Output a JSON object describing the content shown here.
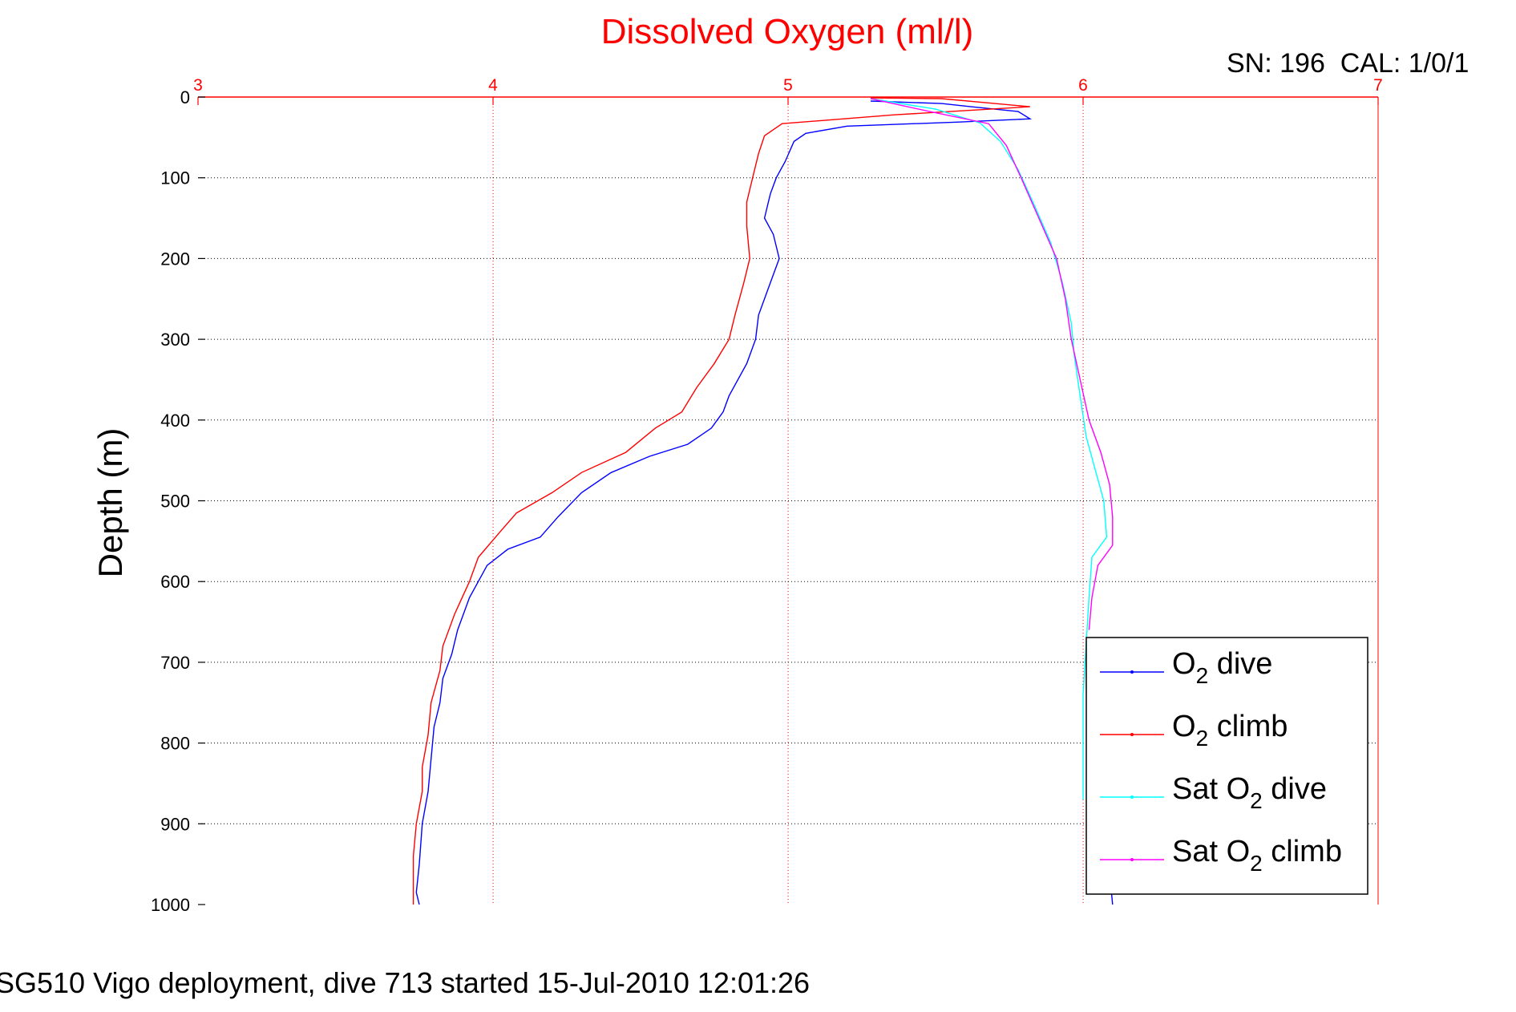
{
  "chart_data": {
    "type": "line",
    "title": "Dissolved Oxygen (ml/l)",
    "corner_label": "SN: 196  CAL: 1/0/1",
    "footer": "SG510 Vigo deployment, dive 713 started 15-Jul-2010 12:01:26",
    "ylabel": "Depth (m)",
    "xlim": [
      3,
      7
    ],
    "ylim": [
      0,
      1000
    ],
    "y_reversed": true,
    "x_axis_position": "top",
    "grid": true,
    "legend_position": "bottom-right",
    "x_ticks": [
      "3",
      "4",
      "5",
      "6",
      "7"
    ],
    "y_ticks": [
      "0",
      "100",
      "200",
      "300",
      "400",
      "500",
      "600",
      "700",
      "800",
      "900",
      "1000"
    ],
    "colors": {
      "title": "#ff0000",
      "x_axis": "#ff0000",
      "grid_x": "#ff0000",
      "grid_y": "#000000"
    },
    "series": [
      {
        "name_prefix": "O",
        "name_sub": "2",
        "name_suffix": " dive",
        "color": "#0000ff",
        "points": [
          [
            5.28,
            5
          ],
          [
            5.52,
            8
          ],
          [
            5.62,
            12
          ],
          [
            5.78,
            18
          ],
          [
            5.82,
            27
          ],
          [
            5.58,
            31
          ],
          [
            5.2,
            36
          ],
          [
            5.06,
            45
          ],
          [
            5.02,
            55
          ],
          [
            4.99,
            80
          ],
          [
            4.96,
            100
          ],
          [
            4.94,
            120
          ],
          [
            4.92,
            150
          ],
          [
            4.95,
            170
          ],
          [
            4.97,
            200
          ],
          [
            4.94,
            230
          ],
          [
            4.9,
            270
          ],
          [
            4.89,
            300
          ],
          [
            4.86,
            330
          ],
          [
            4.8,
            370
          ],
          [
            4.78,
            390
          ],
          [
            4.74,
            410
          ],
          [
            4.66,
            430
          ],
          [
            4.53,
            445
          ],
          [
            4.4,
            465
          ],
          [
            4.3,
            490
          ],
          [
            4.22,
            520
          ],
          [
            4.16,
            545
          ],
          [
            4.05,
            560
          ],
          [
            3.98,
            580
          ],
          [
            3.95,
            600
          ],
          [
            3.92,
            620
          ],
          [
            3.88,
            660
          ],
          [
            3.86,
            690
          ],
          [
            3.83,
            720
          ],
          [
            3.82,
            750
          ],
          [
            3.8,
            780
          ],
          [
            3.79,
            820
          ],
          [
            3.78,
            860
          ],
          [
            3.76,
            900
          ],
          [
            3.75,
            950
          ],
          [
            3.74,
            985
          ],
          [
            3.75,
            1000
          ]
        ]
      },
      {
        "name_prefix": "O",
        "name_sub": "2",
        "name_suffix": " climb",
        "color": "#ff0000",
        "points": [
          [
            5.28,
            1
          ],
          [
            5.52,
            2
          ],
          [
            5.82,
            12
          ],
          [
            5.36,
            22
          ],
          [
            4.98,
            33
          ],
          [
            4.92,
            48
          ],
          [
            4.9,
            70
          ],
          [
            4.88,
            100
          ],
          [
            4.86,
            130
          ],
          [
            4.86,
            160
          ],
          [
            4.87,
            200
          ],
          [
            4.85,
            230
          ],
          [
            4.82,
            270
          ],
          [
            4.8,
            300
          ],
          [
            4.75,
            330
          ],
          [
            4.69,
            360
          ],
          [
            4.64,
            390
          ],
          [
            4.55,
            410
          ],
          [
            4.45,
            440
          ],
          [
            4.3,
            465
          ],
          [
            4.2,
            490
          ],
          [
            4.08,
            515
          ],
          [
            4.02,
            540
          ],
          [
            3.95,
            570
          ],
          [
            3.92,
            600
          ],
          [
            3.87,
            640
          ],
          [
            3.83,
            680
          ],
          [
            3.82,
            710
          ],
          [
            3.79,
            750
          ],
          [
            3.78,
            790
          ],
          [
            3.76,
            830
          ],
          [
            3.76,
            860
          ],
          [
            3.74,
            900
          ],
          [
            3.73,
            940
          ],
          [
            3.73,
            980
          ],
          [
            3.73,
            1000
          ]
        ]
      },
      {
        "name_prefix": "Sat O",
        "name_sub": "2",
        "name_suffix": " dive",
        "color": "#00ffff",
        "points": [
          [
            5.28,
            2
          ],
          [
            5.5,
            15
          ],
          [
            5.65,
            32
          ],
          [
            5.72,
            55
          ],
          [
            5.78,
            90
          ],
          [
            5.83,
            130
          ],
          [
            5.89,
            180
          ],
          [
            5.93,
            230
          ],
          [
            5.96,
            280
          ],
          [
            5.97,
            320
          ],
          [
            5.99,
            370
          ],
          [
            6.01,
            420
          ],
          [
            6.04,
            460
          ],
          [
            6.07,
            500
          ],
          [
            6.08,
            545
          ],
          [
            6.03,
            570
          ],
          [
            6.02,
            620
          ],
          [
            6.01,
            680
          ],
          [
            6.0,
            740
          ],
          [
            6.0,
            800
          ],
          [
            6.0,
            870
          ]
        ]
      },
      {
        "name_prefix": "Sat O",
        "name_sub": "2",
        "name_suffix": " climb",
        "color": "#ff00ff",
        "points": [
          [
            5.28,
            2
          ],
          [
            5.48,
            18
          ],
          [
            5.68,
            33
          ],
          [
            5.74,
            60
          ],
          [
            5.79,
            100
          ],
          [
            5.85,
            150
          ],
          [
            5.91,
            200
          ],
          [
            5.94,
            250
          ],
          [
            5.96,
            300
          ],
          [
            5.99,
            350
          ],
          [
            6.02,
            400
          ],
          [
            6.06,
            440
          ],
          [
            6.09,
            480
          ],
          [
            6.1,
            520
          ],
          [
            6.1,
            555
          ],
          [
            6.05,
            580
          ],
          [
            6.03,
            620
          ],
          [
            6.02,
            660
          ]
        ]
      }
    ],
    "extra_segment": {
      "color": "#0000ff",
      "points": [
        [
          6.08,
          920
        ],
        [
          6.1,
          1000
        ]
      ]
    }
  }
}
